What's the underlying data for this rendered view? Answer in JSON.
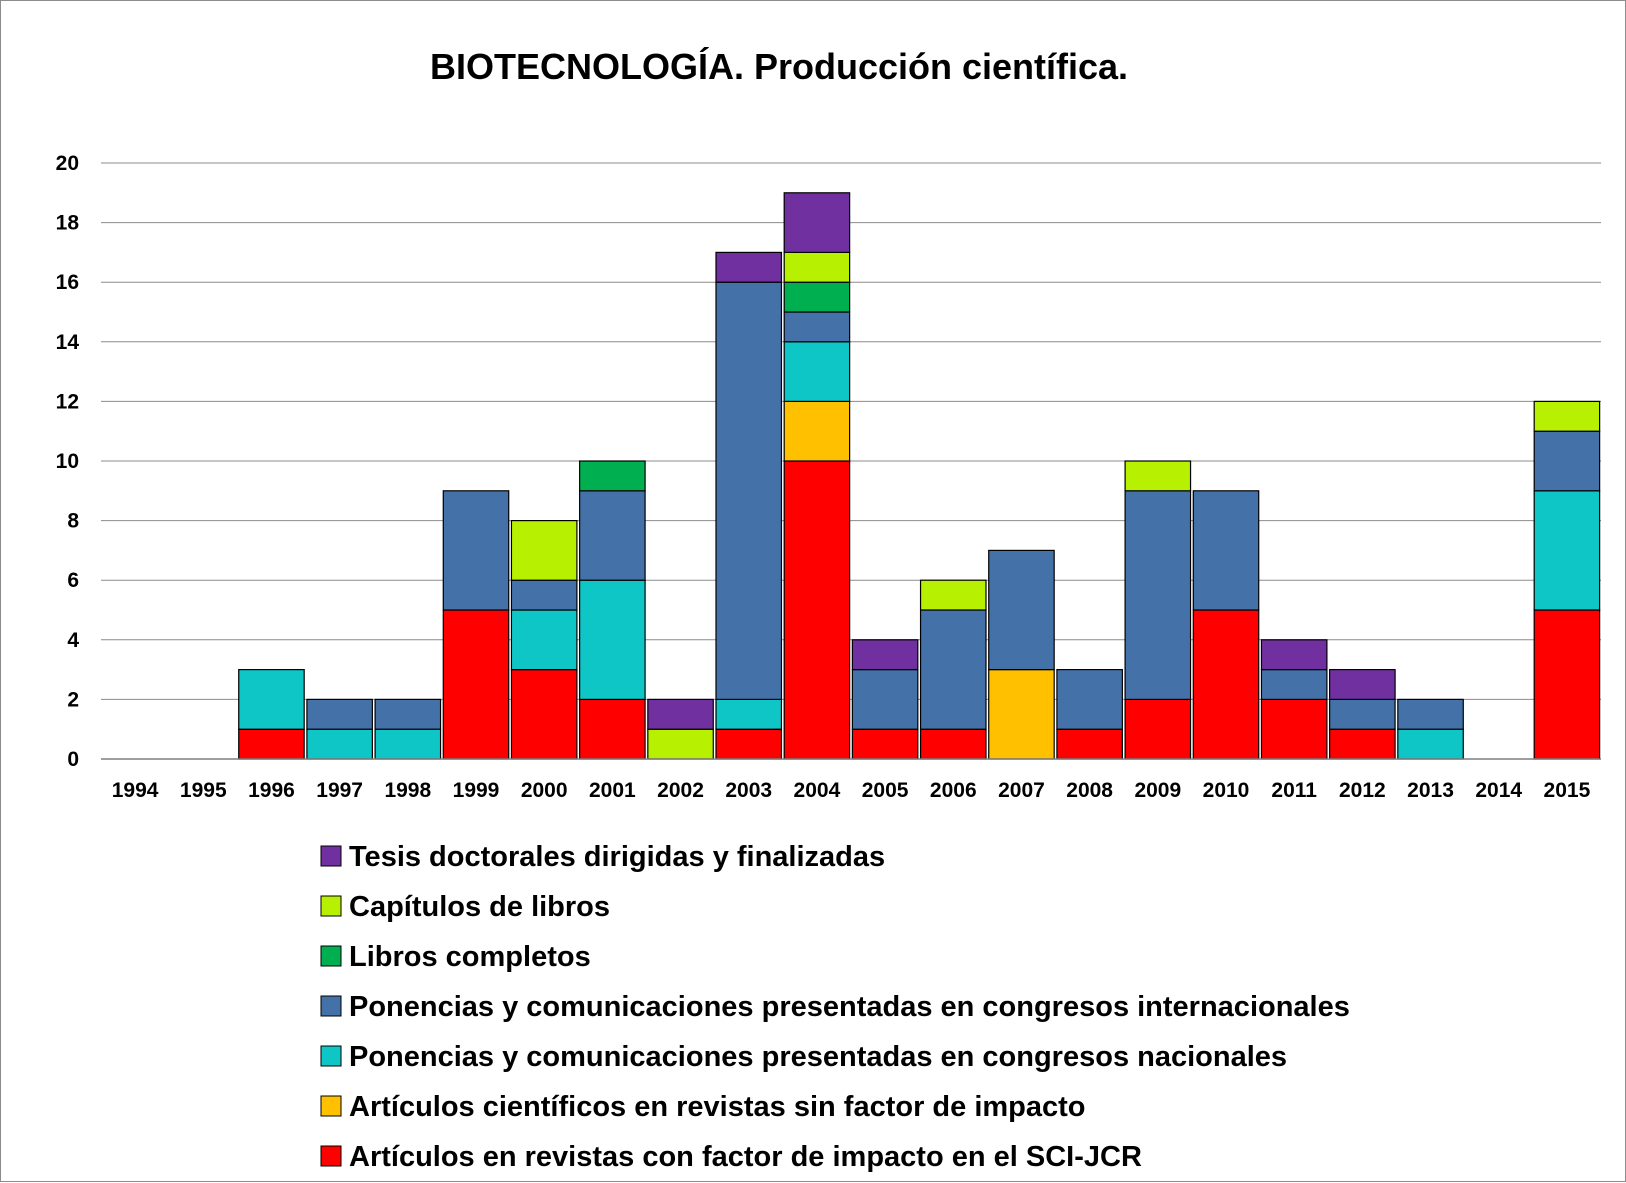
{
  "chart_data": {
    "type": "bar",
    "stacked": true,
    "title": "BIOTECNOLOGÍA. Producción científica.",
    "xlabel": "",
    "ylabel": "",
    "ylim": [
      0,
      20
    ],
    "yticks": [
      "0",
      "2",
      "4",
      "6",
      "8",
      "10",
      "12",
      "14",
      "16",
      "18",
      "20"
    ],
    "grid": true,
    "legend_position": "bottom",
    "categories": [
      "1994",
      "1995",
      "1996",
      "1997",
      "1998",
      "1999",
      "2000",
      "2001",
      "2002",
      "2003",
      "2004",
      "2005",
      "2006",
      "2007",
      "2008",
      "2009",
      "2010",
      "2011",
      "2012",
      "2013",
      "2014",
      "2015"
    ],
    "series": [
      {
        "name": "Artículos en revistas con factor de impacto en el SCI-JCR",
        "color": "#ff0000",
        "values": [
          0,
          0,
          1,
          0,
          0,
          5,
          3,
          2,
          0,
          1,
          10,
          1,
          1,
          0,
          1,
          2,
          5,
          2,
          1,
          0,
          0,
          5
        ]
      },
      {
        "name": "Artículos científicos en revistas sin factor de impacto",
        "color": "#ffc000",
        "values": [
          0,
          0,
          0,
          0,
          0,
          0,
          0,
          0,
          0,
          0,
          2,
          0,
          0,
          3,
          0,
          0,
          0,
          0,
          0,
          0,
          0,
          0
        ]
      },
      {
        "name": "Ponencias y comunicaciones presentadas en congresos nacionales",
        "color": "#0fc6c6",
        "values": [
          0,
          0,
          2,
          1,
          1,
          0,
          2,
          4,
          0,
          1,
          2,
          0,
          0,
          0,
          0,
          0,
          0,
          0,
          0,
          1,
          0,
          4
        ]
      },
      {
        "name": "Ponencias y comunicaciones presentadas en congresos internacionales",
        "color": "#4472a8",
        "values": [
          0,
          0,
          0,
          1,
          1,
          4,
          1,
          3,
          0,
          14,
          1,
          2,
          4,
          4,
          2,
          7,
          4,
          1,
          1,
          1,
          0,
          2
        ]
      },
      {
        "name": "Libros completos",
        "color": "#00b050",
        "values": [
          0,
          0,
          0,
          0,
          0,
          0,
          0,
          1,
          0,
          0,
          1,
          0,
          0,
          0,
          0,
          0,
          0,
          0,
          0,
          0,
          0,
          0
        ]
      },
      {
        "name": "Capítulos de libros",
        "color": "#b7f000",
        "values": [
          0,
          0,
          0,
          0,
          0,
          0,
          2,
          0,
          1,
          0,
          1,
          0,
          1,
          0,
          0,
          1,
          0,
          0,
          0,
          0,
          0,
          1
        ]
      },
      {
        "name": "Tesis doctorales dirigidas y finalizadas",
        "color": "#7030a0",
        "values": [
          0,
          0,
          0,
          0,
          0,
          0,
          0,
          0,
          1,
          1,
          2,
          1,
          0,
          0,
          0,
          0,
          0,
          1,
          1,
          0,
          0,
          0
        ]
      }
    ]
  }
}
